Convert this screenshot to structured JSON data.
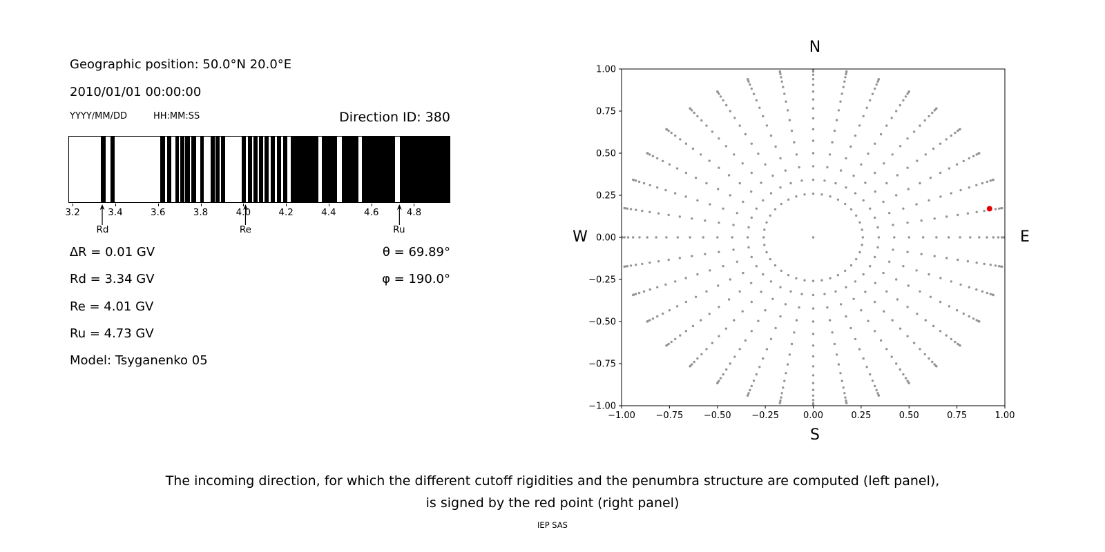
{
  "page": {
    "background": "#ffffff",
    "caption_line1": "The incoming direction, for which the different cutoff rigidities and the penumbra structure are computed (left panel),",
    "caption_line2": "is signed by the red point (right panel)",
    "footer": "IEP SAS"
  },
  "left_panel": {
    "geo_position": "Geographic position: 50.0°N 20.0°E",
    "datetime": "2010/01/01 00:00:00",
    "date_format_label": "YYYY/MM/DD",
    "time_format_label": "HH:MM:SS",
    "direction_id": "Direction ID: 380",
    "info_lines": [
      "∆R = 0.01 GV",
      "Rd = 3.34 GV",
      "Re = 4.01 GV",
      "Ru = 4.73 GV",
      "Model: Tsyganenko 05"
    ],
    "angle_lines": [
      "θ = 69.89°",
      "φ = 190.0°"
    ]
  },
  "chart_data": [
    {
      "type": "bar",
      "name": "penumbra_structure",
      "description": "Cutoff-rigidity penumbra: black bands are allowed rigidity windows between Rd and Ru (GV)",
      "xlim": [
        3.18,
        4.97
      ],
      "x_unit": "GV",
      "xticks": [
        3.2,
        3.4,
        3.6,
        3.8,
        4.0,
        4.2,
        4.4,
        4.6,
        4.8
      ],
      "xtick_labels": [
        "3.2",
        "3.4",
        "3.6",
        "3.8",
        "4.0",
        "4.2",
        "4.4",
        "4.6",
        "4.8"
      ],
      "bar_color": "#000000",
      "black_bands": [
        [
          3.33,
          3.352
        ],
        [
          3.376,
          3.396
        ],
        [
          3.608,
          3.63
        ],
        [
          3.64,
          3.66
        ],
        [
          3.68,
          3.698
        ],
        [
          3.704,
          3.722
        ],
        [
          3.727,
          3.747
        ],
        [
          3.756,
          3.777
        ],
        [
          3.797,
          3.815
        ],
        [
          3.846,
          3.864
        ],
        [
          3.869,
          3.887
        ],
        [
          3.895,
          3.913
        ],
        [
          3.992,
          4.013
        ],
        [
          4.022,
          4.04
        ],
        [
          4.048,
          4.068
        ],
        [
          4.074,
          4.094
        ],
        [
          4.1,
          4.12
        ],
        [
          4.129,
          4.147
        ],
        [
          4.158,
          4.177
        ],
        [
          4.188,
          4.208
        ],
        [
          4.223,
          4.352
        ],
        [
          4.37,
          4.442
        ],
        [
          4.464,
          4.54
        ],
        [
          4.558,
          4.712
        ],
        [
          4.735,
          4.97
        ]
      ],
      "markers": [
        {
          "label": "Rd",
          "value": 3.34
        },
        {
          "label": "Re",
          "value": 4.01
        },
        {
          "label": "Ru",
          "value": 4.73
        }
      ]
    },
    {
      "type": "scatter",
      "name": "incoming_direction_grid",
      "compass": {
        "top": "N",
        "bottom": "S",
        "left": "W",
        "right": "E"
      },
      "xlim": [
        -1,
        1
      ],
      "ylim": [
        -1,
        1
      ],
      "ticks": [
        -1,
        -0.75,
        -0.5,
        -0.25,
        0,
        0.25,
        0.5,
        0.75,
        1
      ],
      "tick_labels": [
        "−1.00",
        "−0.75",
        "−0.50",
        "−0.25",
        "0.00",
        "0.25",
        "0.50",
        "0.75",
        "1.00"
      ],
      "dot_color": "#949494",
      "grid": {
        "azimuth_start_deg": 0,
        "azimuth_step_deg": 10,
        "azimuth_count": 36,
        "zenith_start_deg": 15,
        "zenith_step_deg": 5,
        "zenith_count": 16,
        "projection": "sine",
        "include_center_dot": true
      },
      "red_point": {
        "x": 0.92,
        "y": 0.17,
        "theta_deg": 69.89,
        "phi_deg": 190.0,
        "color": "#e50000"
      }
    }
  ]
}
